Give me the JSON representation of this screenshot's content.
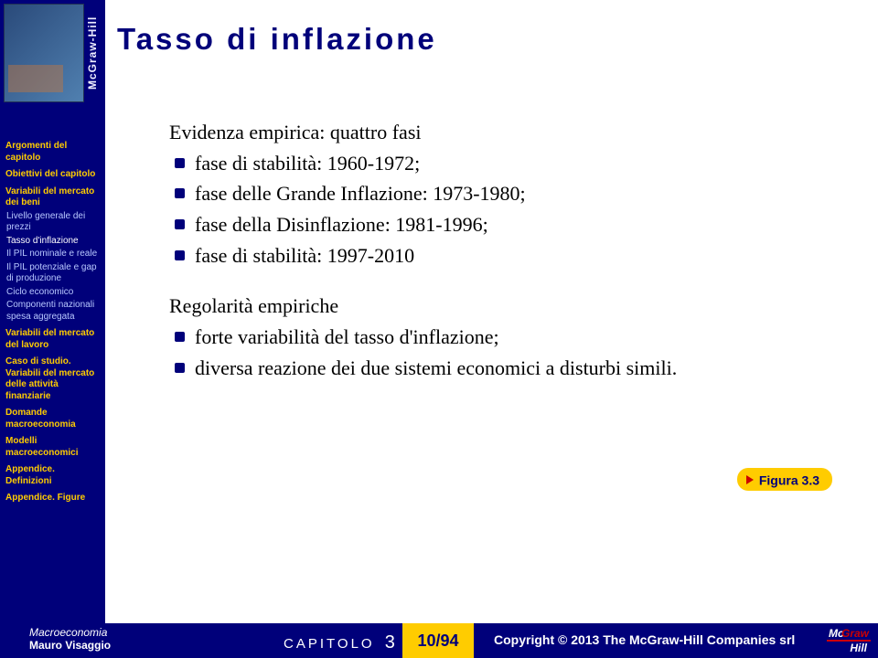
{
  "colors": {
    "primary": "#00007a",
    "accent": "#ffcc00",
    "danger": "#cc0000",
    "text": "#000000",
    "sidebar_text_dim": "#b8c8ff",
    "white": "#ffffff"
  },
  "spine": "McGraw-Hill",
  "title": "Tasso di inflazione",
  "nav": [
    {
      "type": "sec",
      "text": "Argomenti del capitolo"
    },
    {
      "type": "sec",
      "text": "Obiettivi del capitolo"
    },
    {
      "type": "sec",
      "text": "Variabili del mercato dei beni"
    },
    {
      "type": "sub",
      "text": "Livello generale dei prezzi"
    },
    {
      "type": "sub",
      "text": "Tasso d'inflazione",
      "active": true
    },
    {
      "type": "sub",
      "text": "Il PIL nominale e reale"
    },
    {
      "type": "sub",
      "text": "Il PIL potenziale e gap di produzione"
    },
    {
      "type": "sub",
      "text": "Ciclo economico"
    },
    {
      "type": "sub",
      "text": "Componenti nazionali spesa aggregata"
    },
    {
      "type": "sec",
      "text": "Variabili del mercato del lavoro"
    },
    {
      "type": "sec",
      "text": "Caso di studio. Variabili del mercato delle attività finanziarie"
    },
    {
      "type": "sec",
      "text": "Domande macroeconomia"
    },
    {
      "type": "sec",
      "text": "Modelli macroeconomici"
    },
    {
      "type": "sec",
      "text": "Appendice. Definizioni"
    },
    {
      "type": "sec",
      "text": "Appendice. Figure"
    }
  ],
  "content": {
    "block1": {
      "lead": "Evidenza empirica: quattro fasi",
      "items": [
        "fase di stabilità: 1960-1972;",
        "fase delle Grande Inflazione: 1973-1980;",
        "fase della Disinflazione: 1981-1996;",
        "fase di stabilità: 1997-2010"
      ]
    },
    "block2": {
      "lead": "Regolarità empiriche",
      "items": [
        "forte variabilità del tasso d'inflazione;",
        "diversa reazione dei due sistemi economici a disturbi simili."
      ]
    }
  },
  "figure_button": "Figura 3.3",
  "footer": {
    "book": "Macroeconomia",
    "author": "Mauro Visaggio",
    "chapter_label": "CAPITOLO",
    "chapter_num": "3",
    "page": "10/94",
    "copyright": "Copyright © 2013 The McGraw-Hill Companies srl"
  }
}
